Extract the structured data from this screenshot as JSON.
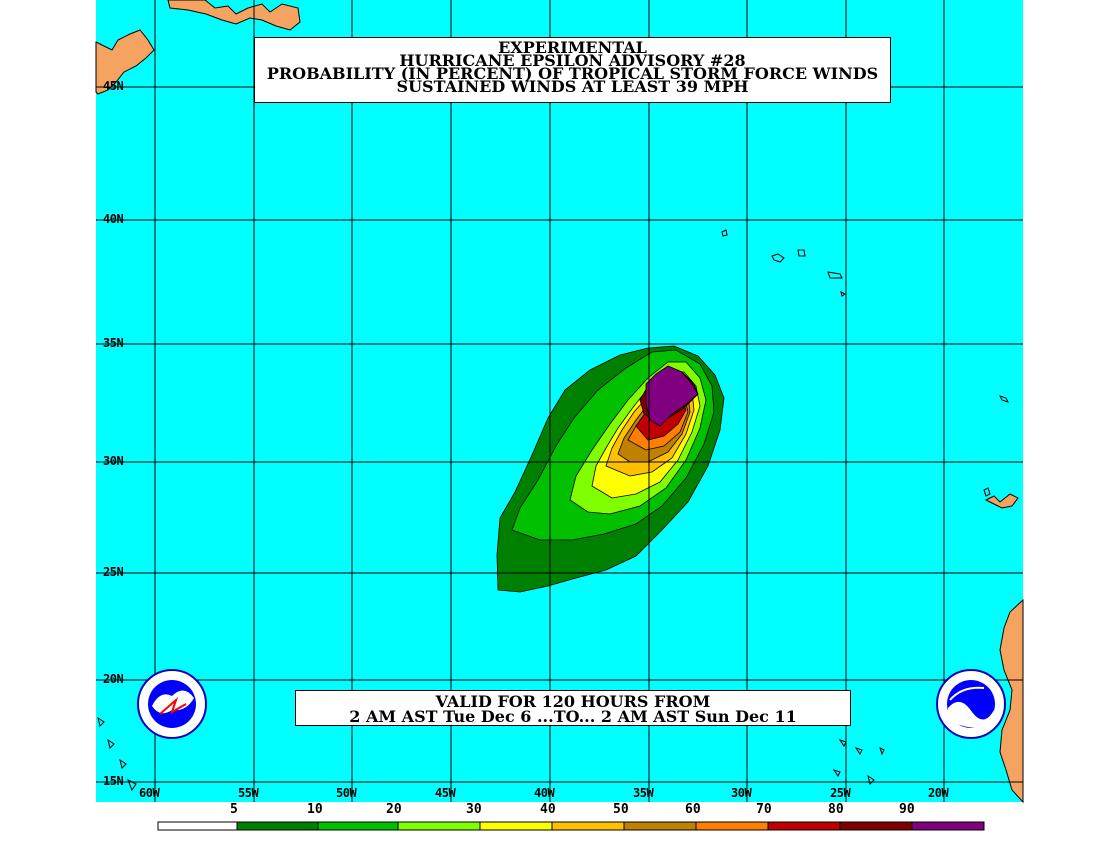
{
  "title": {
    "line1": "EXPERIMENTAL",
    "line2": "HURRICANE EPSILON ADVISORY #28",
    "line3": "PROBABILITY (IN PERCENT) OF TROPICAL STORM FORCE WINDS",
    "line4": "SUSTAINED WINDS AT LEAST 39 MPH"
  },
  "valid": {
    "line1": "VALID FOR 120 HOURS FROM",
    "line2": "2 AM AST Tue Dec 6 ...TO... 2 AM AST Sun Dec 11"
  },
  "latitudes": [
    "45N",
    "40N",
    "35N",
    "30N",
    "25N",
    "20N",
    "15N"
  ],
  "longitudes": [
    "60W",
    "55W",
    "50W",
    "45W",
    "40W",
    "35W",
    "30W",
    "25W",
    "20W"
  ],
  "legend": {
    "labels": [
      "5",
      "10",
      "20",
      "30",
      "40",
      "50",
      "60",
      "70",
      "80",
      "90"
    ],
    "colors": [
      "#ffffff",
      "#008000",
      "#00c000",
      "#80ff00",
      "#ffff00",
      "#ffc000",
      "#c08000",
      "#ff8000",
      "#c00000",
      "#800000",
      "#800080"
    ]
  },
  "colors": {
    "ocean": "#00ffff",
    "land": "#f4a460",
    "grid": "#000000"
  },
  "logos": {
    "nws": "NATIONAL WEATHER SERVICE",
    "noaa": "NOAA"
  }
}
